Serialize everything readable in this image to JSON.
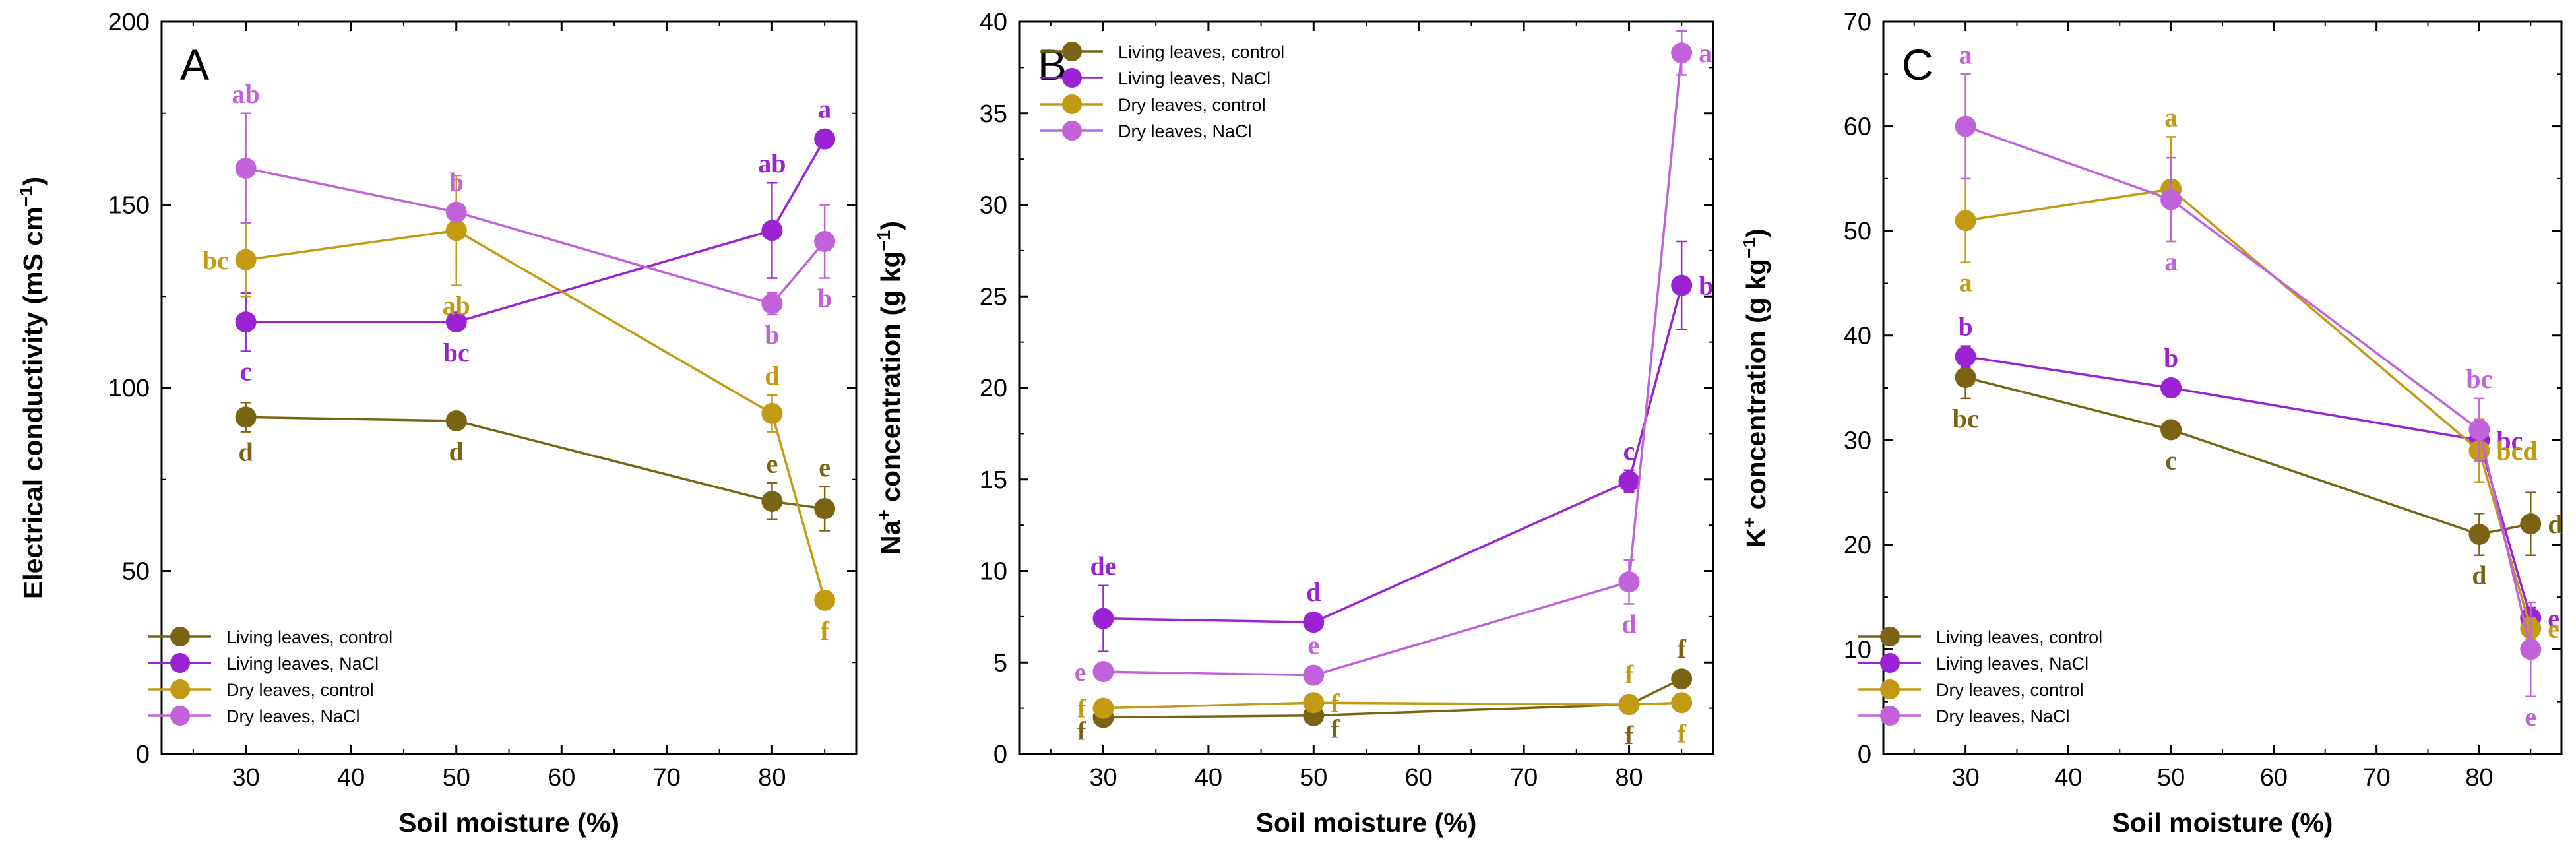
{
  "figure_title": "Electrical conductivity, Na+ and K+ concentration of living and dry leaves vs. soil moisture",
  "colors": {
    "living_control": "#7a6414",
    "living_nacl": "#9a22d2",
    "dry_control": "#c39a14",
    "dry_nacl": "#c262da"
  },
  "chart_data": [
    {
      "type": "line",
      "panel_label": "A",
      "title": "",
      "ylabel": "Electrical conductivity (mS cm−1)",
      "ylabel_main": "Electrical conductivity (mS cm",
      "ylabel_sup": "−1",
      "ylabel_close": ")",
      "xlabel": "Soil moisture (%)",
      "xlim": [
        22,
        88
      ],
      "ylim": [
        0,
        200
      ],
      "xticks": [
        30,
        40,
        50,
        60,
        70,
        80
      ],
      "yticks": [
        0,
        50,
        100,
        150,
        200
      ],
      "legend": "bottom-left",
      "x": [
        30,
        50,
        80,
        85
      ],
      "series": [
        {
          "name": "Living leaves, control",
          "color_key": "living_control",
          "values": [
            92,
            91,
            69,
            67
          ],
          "errors": [
            4,
            2,
            5,
            6
          ],
          "letters": [
            "d",
            "d",
            "e",
            "e"
          ],
          "letter_pos": [
            "below",
            "below",
            "above",
            "above"
          ]
        },
        {
          "name": "Living leaves, NaCl",
          "color_key": "living_nacl",
          "values": [
            118,
            118,
            143,
            168
          ],
          "errors": [
            8,
            2,
            13,
            2
          ],
          "letters": [
            "c",
            "bc",
            "ab",
            "a"
          ],
          "letter_pos": [
            "below",
            "below",
            "above",
            "above"
          ]
        },
        {
          "name": "Dry leaves, control",
          "color_key": "dry_control",
          "values": [
            135,
            143,
            93,
            42
          ],
          "errors": [
            10,
            15,
            5,
            2
          ],
          "letters": [
            "bc",
            "ab",
            "d",
            "f"
          ],
          "letter_pos": [
            "left",
            "below",
            "above",
            "below"
          ]
        },
        {
          "name": "Dry leaves, NaCl",
          "color_key": "dry_nacl",
          "values": [
            160,
            148,
            123,
            140
          ],
          "errors": [
            15,
            2,
            3,
            10
          ],
          "letters": [
            "ab",
            "b",
            "b",
            "b"
          ],
          "letter_pos": [
            "above",
            "above",
            "below",
            "below"
          ]
        }
      ]
    },
    {
      "type": "line",
      "panel_label": "B",
      "title": "",
      "ylabel": "Na+ concentration (g kg−1)",
      "ylabel_pre": "Na",
      "ylabel_pre_sup": "+",
      "ylabel_main": " concentration (g kg",
      "ylabel_sup": "−1",
      "ylabel_close": ")",
      "xlabel": "Soil moisture (%)",
      "xlim": [
        22,
        88
      ],
      "ylim": [
        0,
        40
      ],
      "xticks": [
        30,
        40,
        50,
        60,
        70,
        80
      ],
      "yticks": [
        0,
        5,
        10,
        15,
        20,
        25,
        30,
        35,
        40
      ],
      "legend": "top-left",
      "x": [
        30,
        50,
        80,
        85
      ],
      "series": [
        {
          "name": "Living leaves, control",
          "color_key": "living_control",
          "values": [
            2.0,
            2.1,
            2.7,
            4.1
          ],
          "errors": [
            0.2,
            0.2,
            0.2,
            0.3
          ],
          "letters": [
            "f",
            "f",
            "f",
            "f"
          ],
          "letter_pos": [
            "left-below",
            "right-below",
            "below",
            "above"
          ]
        },
        {
          "name": "Living leaves, NaCl",
          "color_key": "living_nacl",
          "values": [
            7.4,
            7.2,
            14.9,
            25.6
          ],
          "errors": [
            1.8,
            0.3,
            0.6,
            2.4
          ],
          "letters": [
            "de",
            "d",
            "c",
            "b"
          ],
          "letter_pos": [
            "above",
            "above",
            "above",
            "right"
          ]
        },
        {
          "name": "Dry leaves, control",
          "color_key": "dry_control",
          "values": [
            2.5,
            2.8,
            2.7,
            2.8
          ],
          "errors": [
            0.2,
            0.2,
            0.2,
            0.2
          ],
          "letters": [
            "f",
            "f",
            "f",
            "f"
          ],
          "letter_pos": [
            "left",
            "right",
            "above",
            "below"
          ]
        },
        {
          "name": "Dry leaves, NaCl",
          "color_key": "dry_nacl",
          "values": [
            4.5,
            4.3,
            9.4,
            38.3
          ],
          "errors": [
            0.3,
            0.3,
            1.2,
            1.2
          ],
          "letters": [
            "e",
            "e",
            "d",
            "a"
          ],
          "letter_pos": [
            "left",
            "above",
            "below",
            "right"
          ]
        }
      ]
    },
    {
      "type": "line",
      "panel_label": "C",
      "title": "",
      "ylabel": "K+ concentration (g kg−1)",
      "ylabel_pre": "K",
      "ylabel_pre_sup": "+",
      "ylabel_main": " concentration (g kg",
      "ylabel_sup": "−1",
      "ylabel_close": ")",
      "xlabel": "Soil moisture (%)",
      "xlim": [
        22,
        88
      ],
      "ylim": [
        0,
        70
      ],
      "xticks": [
        30,
        40,
        50,
        60,
        70,
        80
      ],
      "yticks": [
        0,
        10,
        20,
        30,
        40,
        50,
        60,
        70
      ],
      "legend": "bottom-left",
      "x": [
        30,
        50,
        80,
        85
      ],
      "series": [
        {
          "name": "Living leaves, control",
          "color_key": "living_control",
          "values": [
            36,
            31,
            21,
            22
          ],
          "errors": [
            2,
            0.6,
            2,
            3
          ],
          "letters": [
            "bc",
            "c",
            "d",
            "d"
          ],
          "letter_pos": [
            "below",
            "below",
            "below",
            "right"
          ]
        },
        {
          "name": "Living leaves, NaCl",
          "color_key": "living_nacl",
          "values": [
            38,
            35,
            30,
            13
          ],
          "errors": [
            1,
            0.6,
            1,
            1
          ],
          "letters": [
            "b",
            "b",
            "bc",
            "e"
          ],
          "letter_pos": [
            "above",
            "above",
            "right",
            "right"
          ]
        },
        {
          "name": "Dry leaves, control",
          "color_key": "dry_control",
          "values": [
            51,
            54,
            29,
            12
          ],
          "errors": [
            4,
            5,
            3,
            1
          ],
          "letters": [
            "a",
            "a",
            "bcd",
            "e"
          ],
          "letter_pos": [
            "below",
            "above",
            "right",
            "right"
          ]
        },
        {
          "name": "Dry leaves, NaCl",
          "color_key": "dry_nacl",
          "values": [
            60,
            53,
            31,
            10
          ],
          "errors": [
            5,
            4,
            3,
            4.5
          ],
          "letters": [
            "a",
            "a",
            "bc",
            "e"
          ],
          "letter_pos": [
            "above",
            "below",
            "above",
            "below"
          ]
        }
      ]
    }
  ]
}
